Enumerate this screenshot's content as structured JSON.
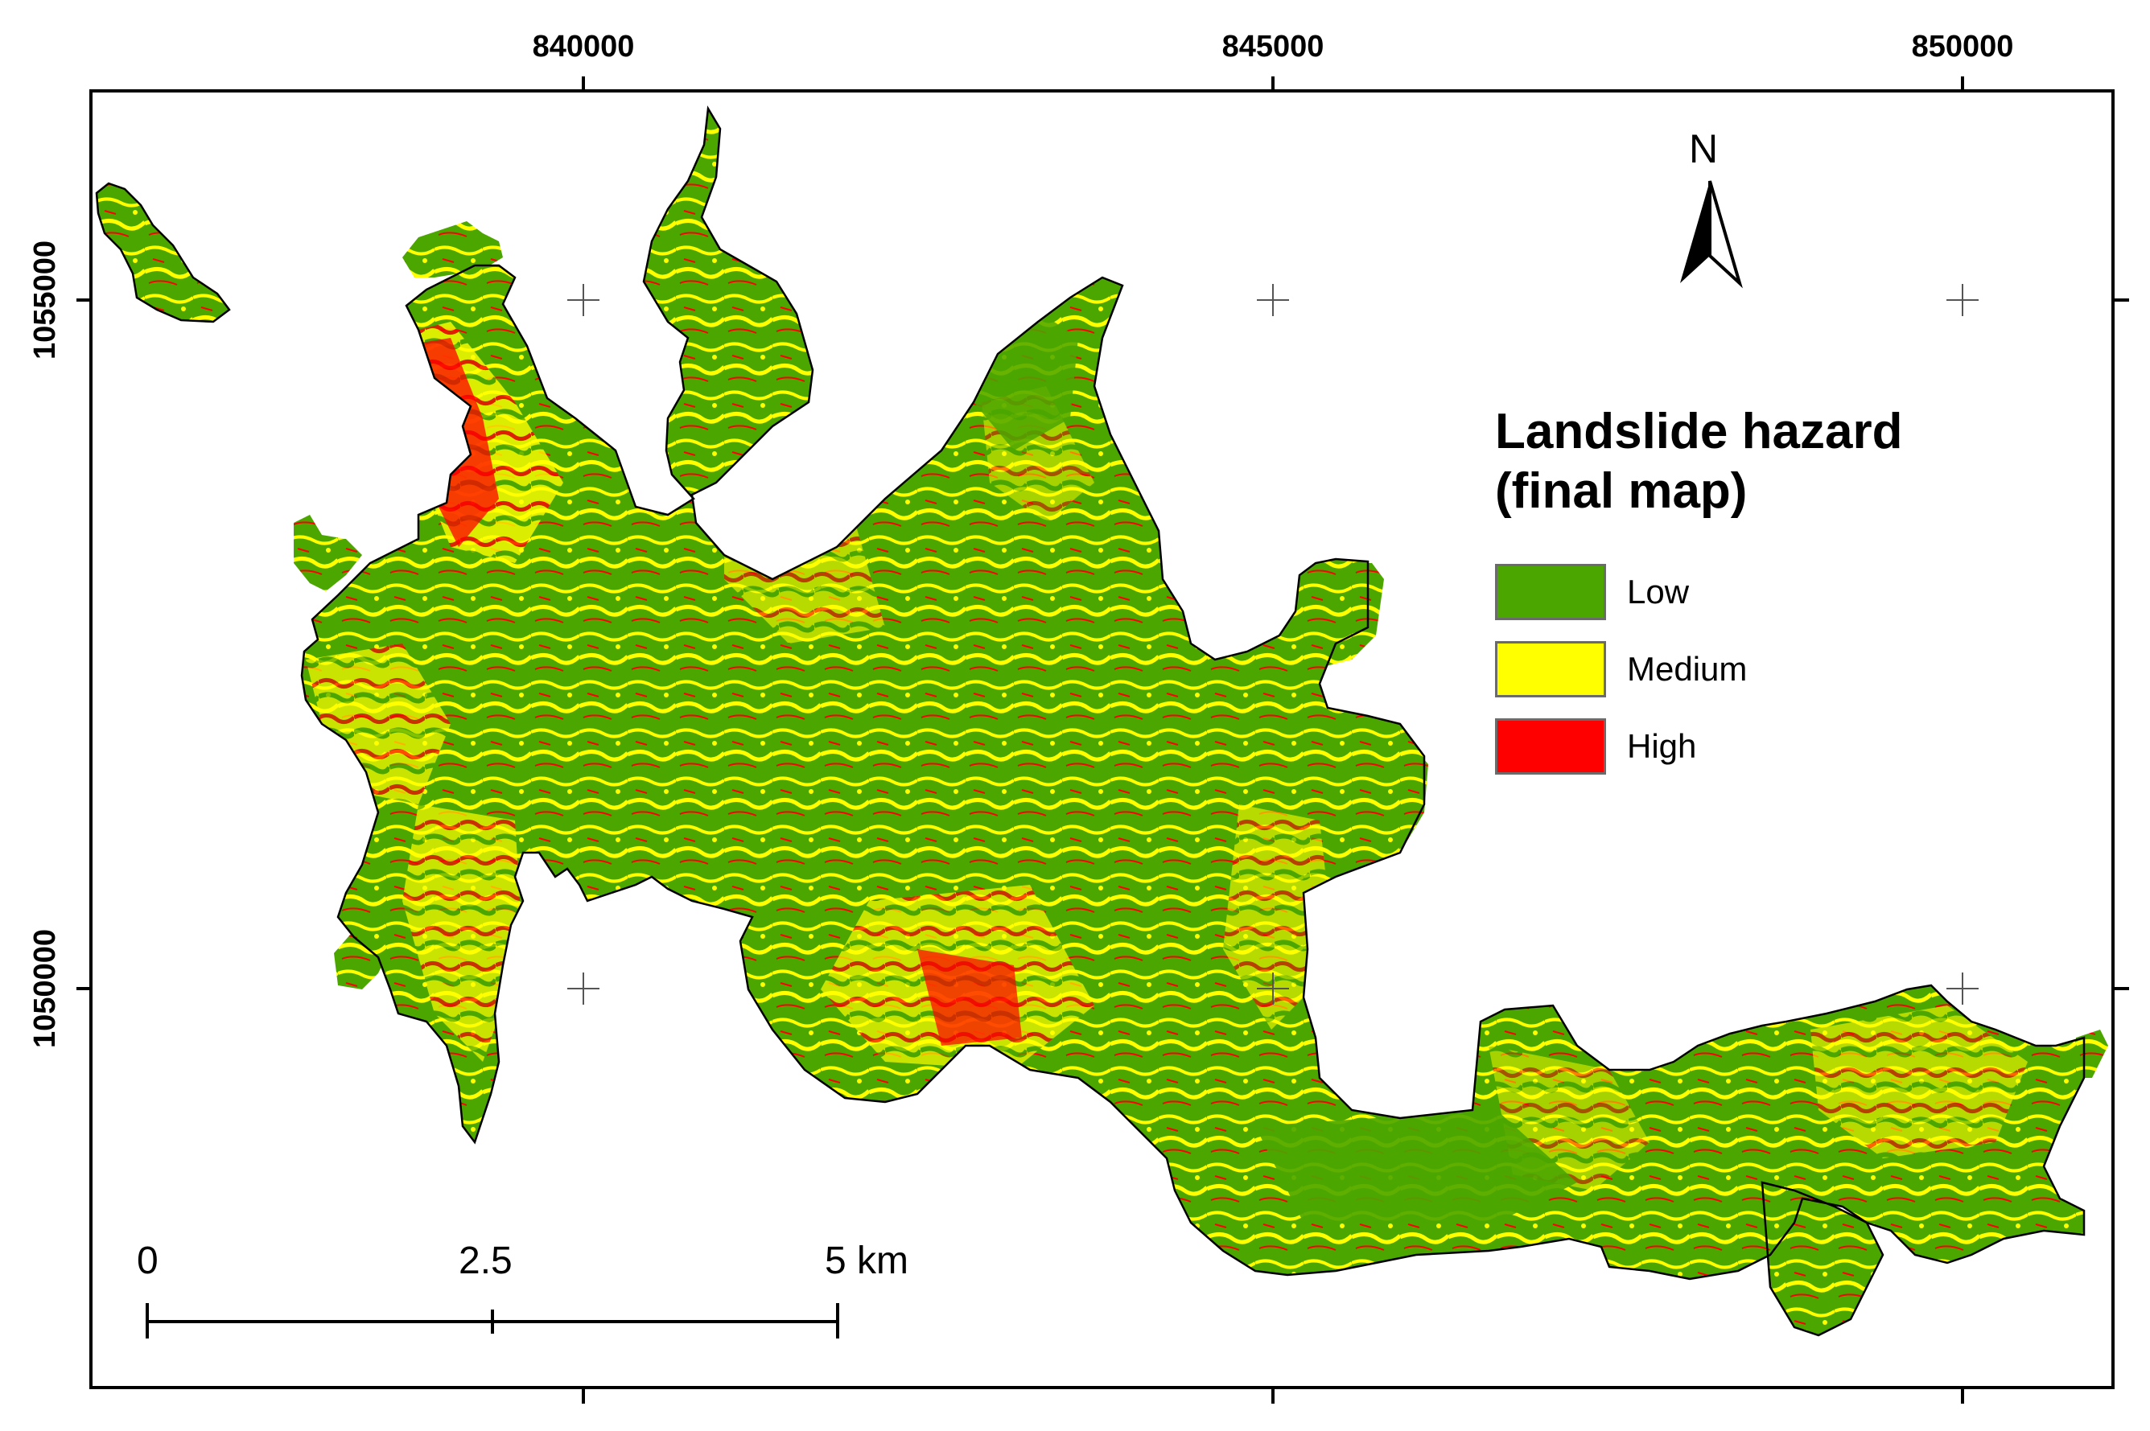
{
  "map": {
    "legend": {
      "title_line1": "Landslide hazard",
      "title_line2": "(final map)",
      "items": [
        {
          "label": "Low",
          "color": "#4ca600"
        },
        {
          "label": "Medium",
          "color": "#ffff00"
        },
        {
          "label": "High",
          "color": "#ff0000"
        }
      ]
    },
    "north_arrow": {
      "label": "N",
      "icon": "north-arrow-icon"
    },
    "scale_bar": {
      "labels": [
        "0",
        "2.5",
        "5 km"
      ]
    },
    "coordinates": {
      "x_labels": [
        "840000",
        "845000",
        "850000"
      ],
      "y_labels": [
        "1055000",
        "1050000"
      ]
    },
    "colors": {
      "outline": "#000000",
      "frame": "#000000"
    }
  }
}
